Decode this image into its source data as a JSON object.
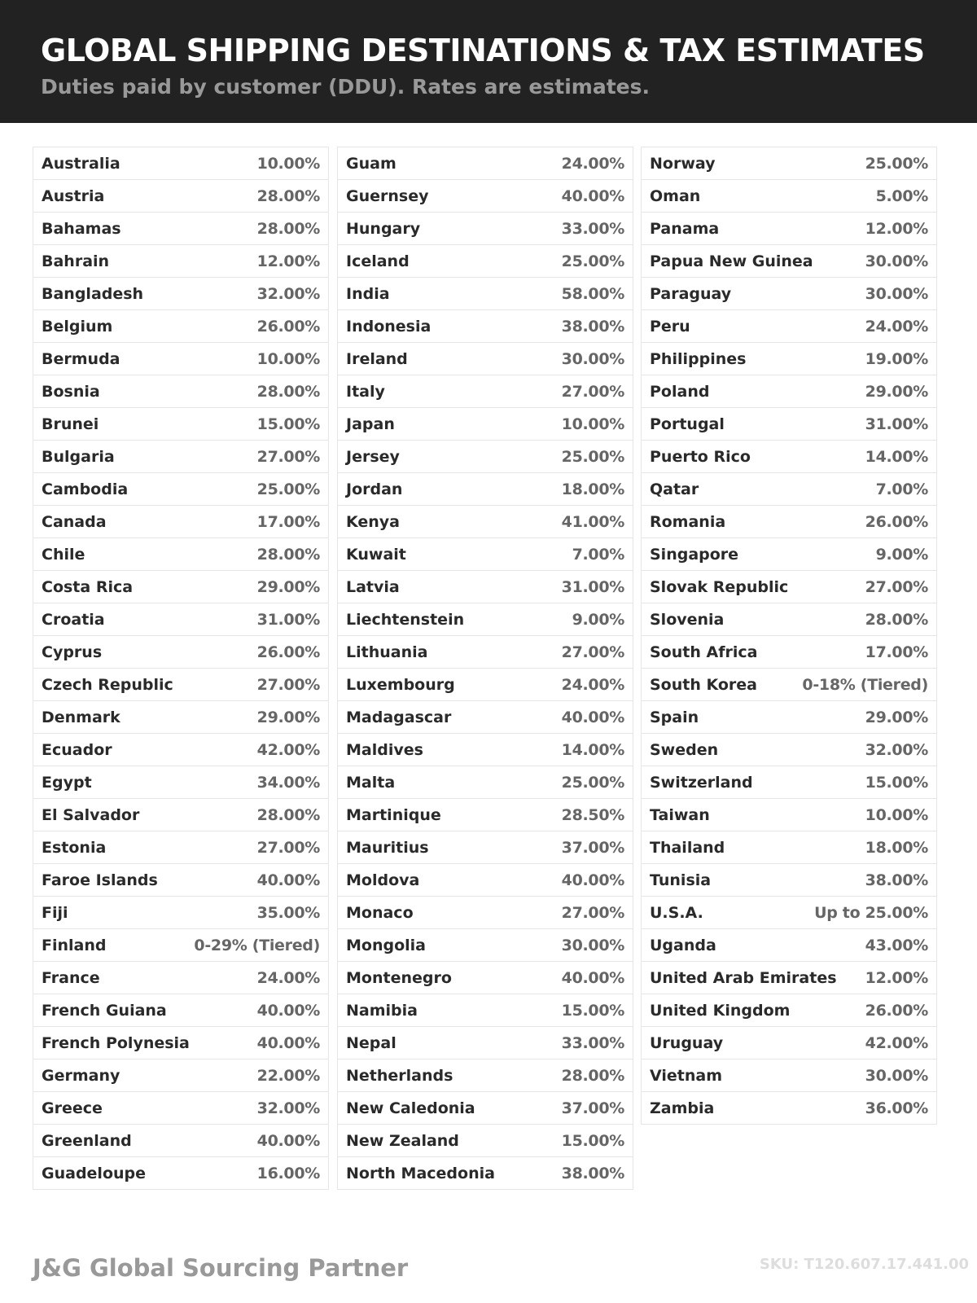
{
  "header": {
    "title": "GLOBAL SHIPPING DESTINATIONS & TAX ESTIMATES",
    "subtitle": "Duties paid by customer (DDU). Rates are estimates."
  },
  "columns": [
    [
      [
        "Australia",
        "10.00%"
      ],
      [
        "Austria",
        "28.00%"
      ],
      [
        "Bahamas",
        "28.00%"
      ],
      [
        "Bahrain",
        "12.00%"
      ],
      [
        "Bangladesh",
        "32.00%"
      ],
      [
        "Belgium",
        "26.00%"
      ],
      [
        "Bermuda",
        "10.00%"
      ],
      [
        "Bosnia",
        "28.00%"
      ],
      [
        "Brunei",
        "15.00%"
      ],
      [
        "Bulgaria",
        "27.00%"
      ],
      [
        "Cambodia",
        "25.00%"
      ],
      [
        "Canada",
        "17.00%"
      ],
      [
        "Chile",
        "28.00%"
      ],
      [
        "Costa Rica",
        "29.00%"
      ],
      [
        "Croatia",
        "31.00%"
      ],
      [
        "Cyprus",
        "26.00%"
      ],
      [
        "Czech Republic",
        "27.00%"
      ],
      [
        "Denmark",
        "29.00%"
      ],
      [
        "Ecuador",
        "42.00%"
      ],
      [
        "Egypt",
        "34.00%"
      ],
      [
        "El Salvador",
        "28.00%"
      ],
      [
        "Estonia",
        "27.00%"
      ],
      [
        "Faroe Islands",
        "40.00%"
      ],
      [
        "Fiji",
        "35.00%"
      ],
      [
        "Finland",
        "0-29% (Tiered)"
      ],
      [
        "France",
        "24.00%"
      ],
      [
        "French Guiana",
        "40.00%"
      ],
      [
        "French Polynesia",
        "40.00%"
      ],
      [
        "Germany",
        "22.00%"
      ],
      [
        "Greece",
        "32.00%"
      ],
      [
        "Greenland",
        "40.00%"
      ],
      [
        "Guadeloupe",
        "16.00%"
      ]
    ],
    [
      [
        "Guam",
        "24.00%"
      ],
      [
        "Guernsey",
        "40.00%"
      ],
      [
        "Hungary",
        "33.00%"
      ],
      [
        "Iceland",
        "25.00%"
      ],
      [
        "India",
        "58.00%"
      ],
      [
        "Indonesia",
        "38.00%"
      ],
      [
        "Ireland",
        "30.00%"
      ],
      [
        "Italy",
        "27.00%"
      ],
      [
        "Japan",
        "10.00%"
      ],
      [
        "Jersey",
        "25.00%"
      ],
      [
        "Jordan",
        "18.00%"
      ],
      [
        "Kenya",
        "41.00%"
      ],
      [
        "Kuwait",
        "7.00%"
      ],
      [
        "Latvia",
        "31.00%"
      ],
      [
        "Liechtenstein",
        "9.00%"
      ],
      [
        "Lithuania",
        "27.00%"
      ],
      [
        "Luxembourg",
        "24.00%"
      ],
      [
        "Madagascar",
        "40.00%"
      ],
      [
        "Maldives",
        "14.00%"
      ],
      [
        "Malta",
        "25.00%"
      ],
      [
        "Martinique",
        "28.50%"
      ],
      [
        "Mauritius",
        "37.00%"
      ],
      [
        "Moldova",
        "40.00%"
      ],
      [
        "Monaco",
        "27.00%"
      ],
      [
        "Mongolia",
        "30.00%"
      ],
      [
        "Montenegro",
        "40.00%"
      ],
      [
        "Namibia",
        "15.00%"
      ],
      [
        "Nepal",
        "33.00%"
      ],
      [
        "Netherlands",
        "28.00%"
      ],
      [
        "New Caledonia",
        "37.00%"
      ],
      [
        "New Zealand",
        "15.00%"
      ],
      [
        "North Macedonia",
        "38.00%"
      ]
    ],
    [
      [
        "Norway",
        "25.00%"
      ],
      [
        "Oman",
        "5.00%"
      ],
      [
        "Panama",
        "12.00%"
      ],
      [
        "Papua New Guinea",
        "30.00%"
      ],
      [
        "Paraguay",
        "30.00%"
      ],
      [
        "Peru",
        "24.00%"
      ],
      [
        "Philippines",
        "19.00%"
      ],
      [
        "Poland",
        "29.00%"
      ],
      [
        "Portugal",
        "31.00%"
      ],
      [
        "Puerto Rico",
        "14.00%"
      ],
      [
        "Qatar",
        "7.00%"
      ],
      [
        "Romania",
        "26.00%"
      ],
      [
        "Singapore",
        "9.00%"
      ],
      [
        "Slovak Republic",
        "27.00%"
      ],
      [
        "Slovenia",
        "28.00%"
      ],
      [
        "South Africa",
        "17.00%"
      ],
      [
        "South Korea",
        "0-18% (Tiered)"
      ],
      [
        "Spain",
        "29.00%"
      ],
      [
        "Sweden",
        "32.00%"
      ],
      [
        "Switzerland",
        "15.00%"
      ],
      [
        "Taiwan",
        "10.00%"
      ],
      [
        "Thailand",
        "18.00%"
      ],
      [
        "Tunisia",
        "38.00%"
      ],
      [
        "U.S.A.",
        "Up to 25.00%"
      ],
      [
        "Uganda",
        "43.00%"
      ],
      [
        "United Arab Emirates",
        "12.00%"
      ],
      [
        "United Kingdom",
        "26.00%"
      ],
      [
        "Uruguay",
        "42.00%"
      ],
      [
        "Vietnam",
        "30.00%"
      ],
      [
        "Zambia",
        "36.00%"
      ]
    ]
  ],
  "footer": {
    "brand": "J&G Global Sourcing Partner",
    "sku": "SKU: T120.607.17.441.00"
  }
}
